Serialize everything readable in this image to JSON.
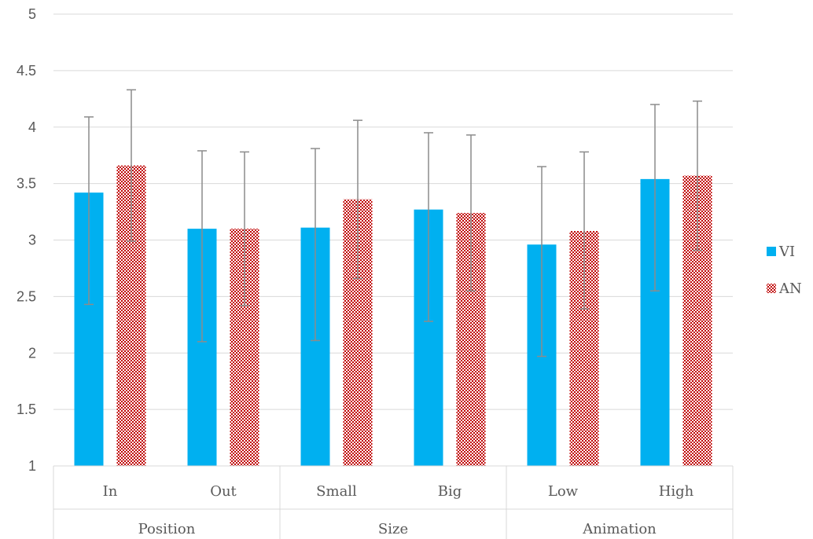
{
  "chart_data": {
    "type": "bar",
    "ylim": [
      1,
      5
    ],
    "yticks": [
      "1",
      "1.5",
      "2",
      "2.5",
      "3",
      "3.5",
      "4",
      "4.5",
      "5"
    ],
    "groups": [
      {
        "label": "Position",
        "categories": [
          "In",
          "Out"
        ]
      },
      {
        "label": "Size",
        "categories": [
          "Small",
          "Big"
        ]
      },
      {
        "label": "Animation",
        "categories": [
          "Low",
          "High"
        ]
      }
    ],
    "categories": [
      "In",
      "Out",
      "Small",
      "Big",
      "Low",
      "High"
    ],
    "series": [
      {
        "name": "VI",
        "color": "#00b0f0",
        "values": [
          3.42,
          3.1,
          3.11,
          3.27,
          2.96,
          3.54
        ],
        "error_low": [
          2.43,
          2.1,
          2.11,
          2.28,
          1.97,
          2.55
        ],
        "error_high": [
          4.09,
          3.79,
          3.81,
          3.95,
          3.65,
          4.2
        ]
      },
      {
        "name": "AN",
        "color": "#c00000",
        "values": [
          3.66,
          3.1,
          3.36,
          3.24,
          3.08,
          3.57
        ],
        "error_low": [
          2.99,
          2.42,
          2.66,
          2.55,
          2.39,
          2.91
        ],
        "error_high": [
          4.33,
          3.78,
          4.06,
          3.93,
          3.78,
          4.23
        ]
      }
    ],
    "grid": true,
    "legend": "right"
  }
}
